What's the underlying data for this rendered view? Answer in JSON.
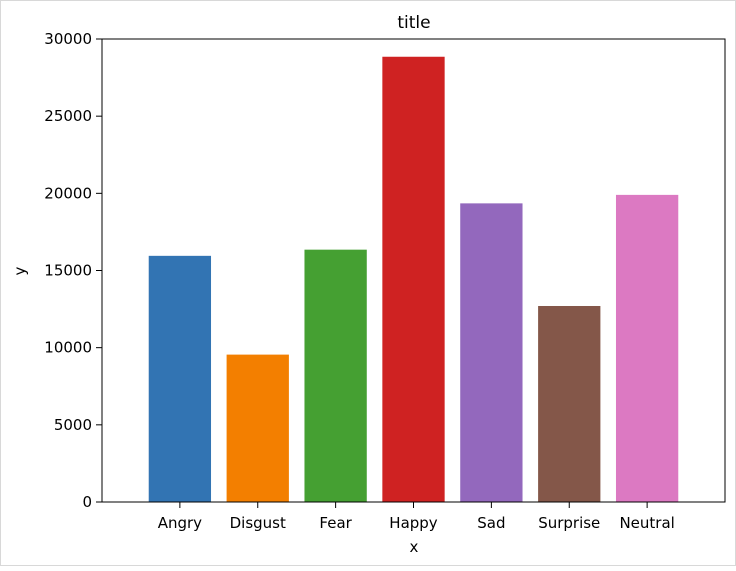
{
  "chart_data": {
    "type": "bar",
    "title": "title",
    "xlabel": "x",
    "ylabel": "y",
    "categories": [
      "Angry",
      "Disgust",
      "Fear",
      "Happy",
      "Sad",
      "Surprise",
      "Neutral"
    ],
    "values": [
      15950,
      9550,
      16350,
      28850,
      19350,
      12700,
      19900
    ],
    "colors": [
      "#3274b3",
      "#f37f00",
      "#45a032",
      "#cf2222",
      "#9368bd",
      "#845749",
      "#dc79c2"
    ],
    "ylim": [
      0,
      30000
    ],
    "yticks": [
      0,
      5000,
      10000,
      15000,
      20000,
      25000,
      30000
    ],
    "grid": false,
    "legend": "none"
  }
}
